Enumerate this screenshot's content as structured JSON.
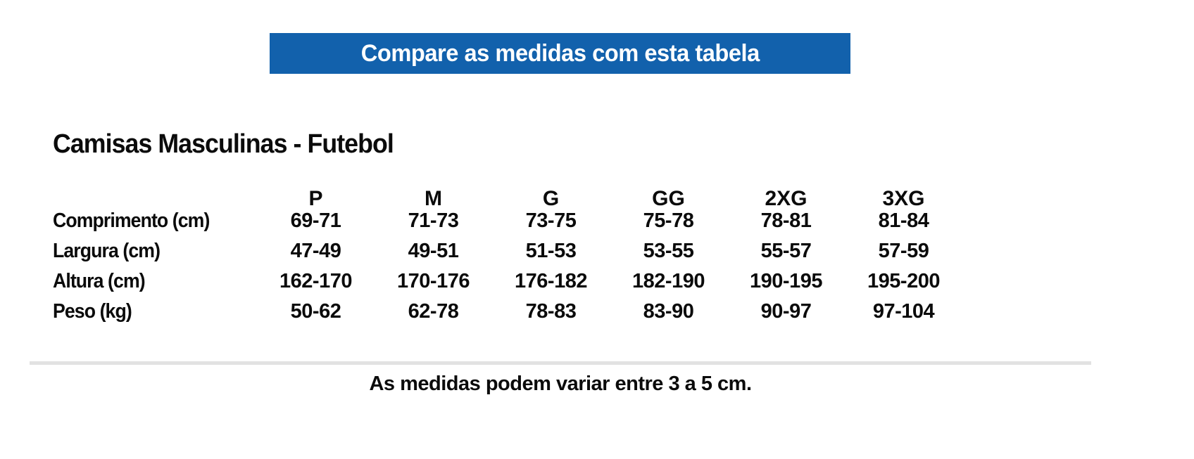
{
  "banner": {
    "text": "Compare as medidas com esta tabela",
    "bg_color": "#1261ac",
    "text_color": "#ffffff"
  },
  "section_title": "Camisas Masculinas - Futebol",
  "size_table": {
    "columns": [
      "P",
      "M",
      "G",
      "GG",
      "2XG",
      "3XG"
    ],
    "rows": [
      {
        "label": "Comprimento (cm)",
        "values": [
          "69-71",
          "71-73",
          "73-75",
          "75-78",
          "78-81",
          "81-84"
        ]
      },
      {
        "label": "Largura (cm)",
        "values": [
          "47-49",
          "49-51",
          "51-53",
          "53-55",
          "55-57",
          "57-59"
        ]
      },
      {
        "label": "Altura (cm)",
        "values": [
          "162-170",
          "170-176",
          "176-182",
          "182-190",
          "190-195",
          "195-200"
        ]
      },
      {
        "label": "Peso (kg)",
        "values": [
          "50-62",
          "62-78",
          "78-83",
          "83-90",
          "90-97",
          "97-104"
        ]
      }
    ]
  },
  "footer_note": "As medidas podem variar entre 3 a 5 cm.",
  "colors": {
    "text": "#0b0b0b",
    "divider": "#e2e2e2"
  }
}
